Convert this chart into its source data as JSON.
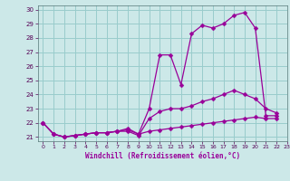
{
  "xlabel": "Windchill (Refroidissement éolien,°C)",
  "background_color": "#cce8e8",
  "grid_color": "#99cccc",
  "line_color": "#990099",
  "xlim": [
    -0.5,
    23
  ],
  "ylim": [
    20.7,
    30.3
  ],
  "yticks": [
    21,
    22,
    23,
    24,
    25,
    26,
    27,
    28,
    29,
    30
  ],
  "xticks": [
    0,
    1,
    2,
    3,
    4,
    5,
    6,
    7,
    8,
    9,
    10,
    11,
    12,
    13,
    14,
    15,
    16,
    17,
    18,
    19,
    20,
    21,
    22,
    23
  ],
  "series": [
    {
      "x": [
        0,
        1,
        2,
        3,
        4,
        5,
        6,
        7,
        8,
        9,
        10,
        11,
        12,
        13,
        14,
        15,
        16,
        17,
        18,
        19,
        20,
        21,
        22
      ],
      "y": [
        22.0,
        21.2,
        21.0,
        21.1,
        21.2,
        21.3,
        21.3,
        21.4,
        21.6,
        21.2,
        23.0,
        26.8,
        26.8,
        24.7,
        28.3,
        28.9,
        28.7,
        29.0,
        29.6,
        29.8,
        28.7,
        22.5,
        22.5
      ],
      "marker": "D",
      "markersize": 2.5
    },
    {
      "x": [
        0,
        1,
        2,
        3,
        4,
        5,
        6,
        7,
        8,
        9,
        10,
        11,
        12,
        13,
        14,
        15,
        16,
        17,
        18,
        19,
        20,
        21,
        22
      ],
      "y": [
        22.0,
        21.2,
        21.0,
        21.1,
        21.2,
        21.3,
        21.3,
        21.4,
        21.4,
        21.1,
        22.3,
        22.8,
        23.0,
        23.0,
        23.2,
        23.5,
        23.7,
        24.0,
        24.3,
        24.0,
        23.7,
        23.0,
        22.7
      ],
      "marker": "D",
      "markersize": 2.5
    },
    {
      "x": [
        0,
        1,
        2,
        3,
        4,
        5,
        6,
        7,
        8,
        9,
        10,
        11,
        12,
        13,
        14,
        15,
        16,
        17,
        18,
        19,
        20,
        21,
        22
      ],
      "y": [
        22.0,
        21.2,
        21.0,
        21.1,
        21.2,
        21.3,
        21.3,
        21.4,
        21.5,
        21.2,
        21.4,
        21.5,
        21.6,
        21.7,
        21.8,
        21.9,
        22.0,
        22.1,
        22.2,
        22.3,
        22.4,
        22.3,
        22.3
      ],
      "marker": "D",
      "markersize": 2.5
    }
  ]
}
